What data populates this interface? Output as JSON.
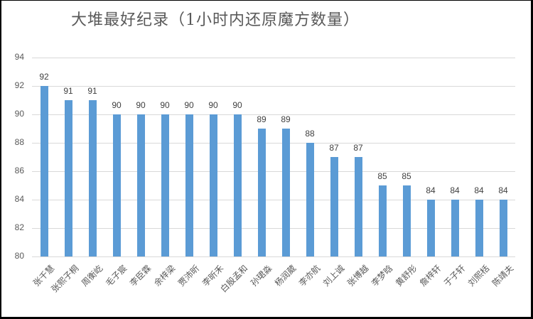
{
  "chart_data": {
    "type": "bar",
    "title": "大堆最好纪录（1小时内还原魔方数量）",
    "xlabel": "",
    "ylabel": "",
    "ylim": [
      80,
      94
    ],
    "yticks": [
      80,
      82,
      84,
      86,
      88,
      90,
      92,
      94
    ],
    "grid": true,
    "legend": null,
    "bar_color": "#5b9bd5",
    "categories": [
      "张千慧",
      "张熙子桐",
      "周衡屹",
      "毛子宸",
      "李臣霖",
      "余梓梁",
      "贾沛昕",
      "李昕禾",
      "白殷孟和",
      "孙珺淼",
      "杨润葳",
      "李亦航",
      "刘上诚",
      "张博越",
      "李梦晗",
      "黄舒彤",
      "詹梓轩",
      "于子轩",
      "刘熙栝",
      "陈靖夫"
    ],
    "values": [
      92,
      91,
      91,
      90,
      90,
      90,
      90,
      90,
      90,
      89,
      89,
      88,
      87,
      87,
      85,
      85,
      84,
      84,
      84,
      84
    ]
  }
}
